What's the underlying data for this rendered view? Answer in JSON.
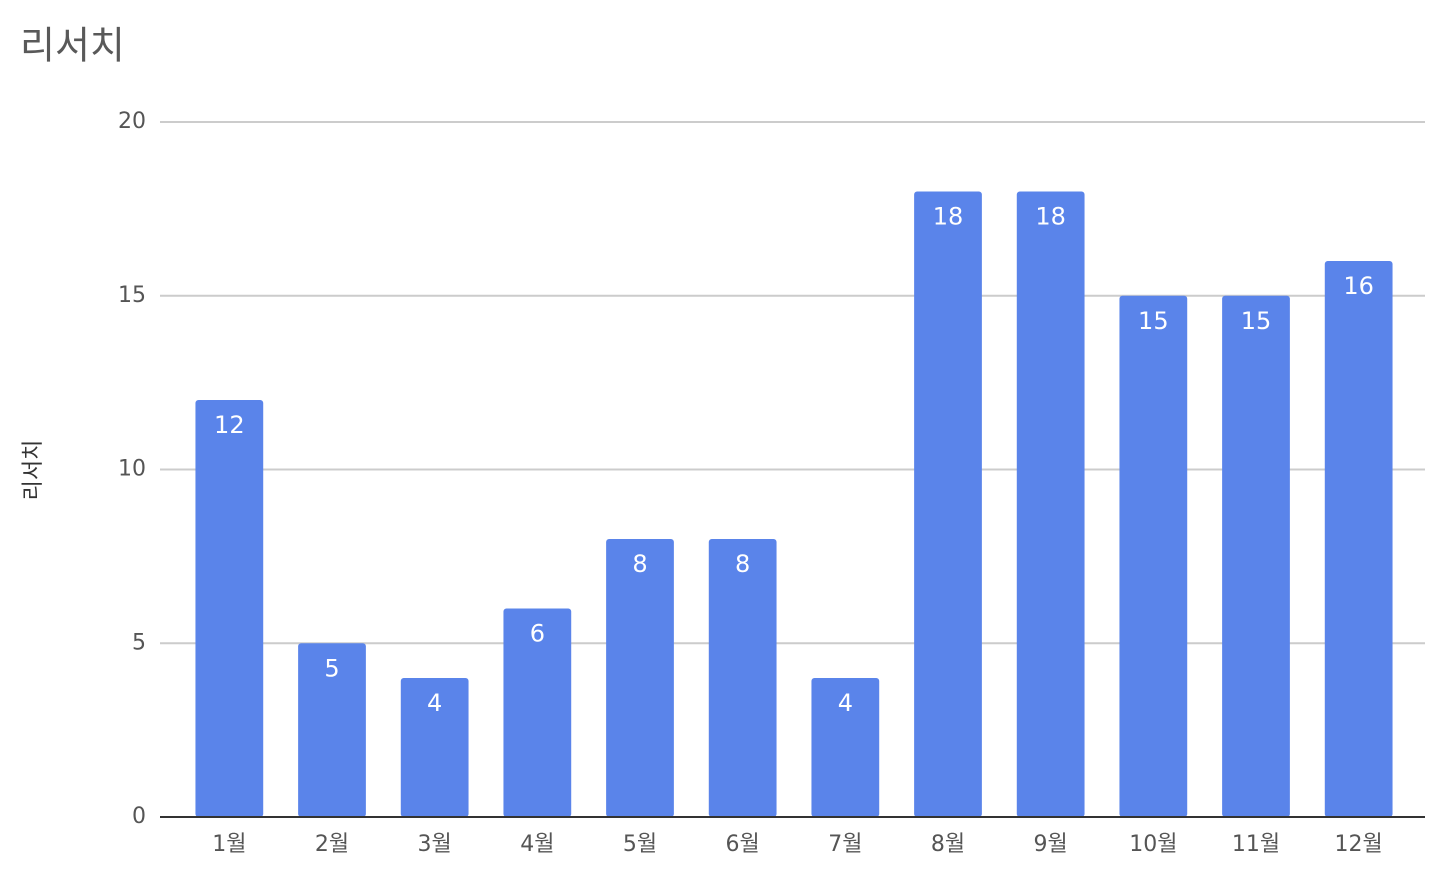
{
  "chart_data": {
    "type": "bar",
    "title": "리서치",
    "y_label": "리서치",
    "categories": [
      "1월",
      "2월",
      "3월",
      "4월",
      "5월",
      "6월",
      "7월",
      "8월",
      "9월",
      "10월",
      "11월",
      "12월"
    ],
    "values": [
      12,
      5,
      4,
      6,
      8,
      8,
      4,
      18,
      18,
      15,
      15,
      16
    ],
    "color": "#5a84ea",
    "ylim": [
      0,
      20
    ],
    "yticks": [
      0,
      5,
      10,
      15,
      20
    ],
    "grid": true
  }
}
